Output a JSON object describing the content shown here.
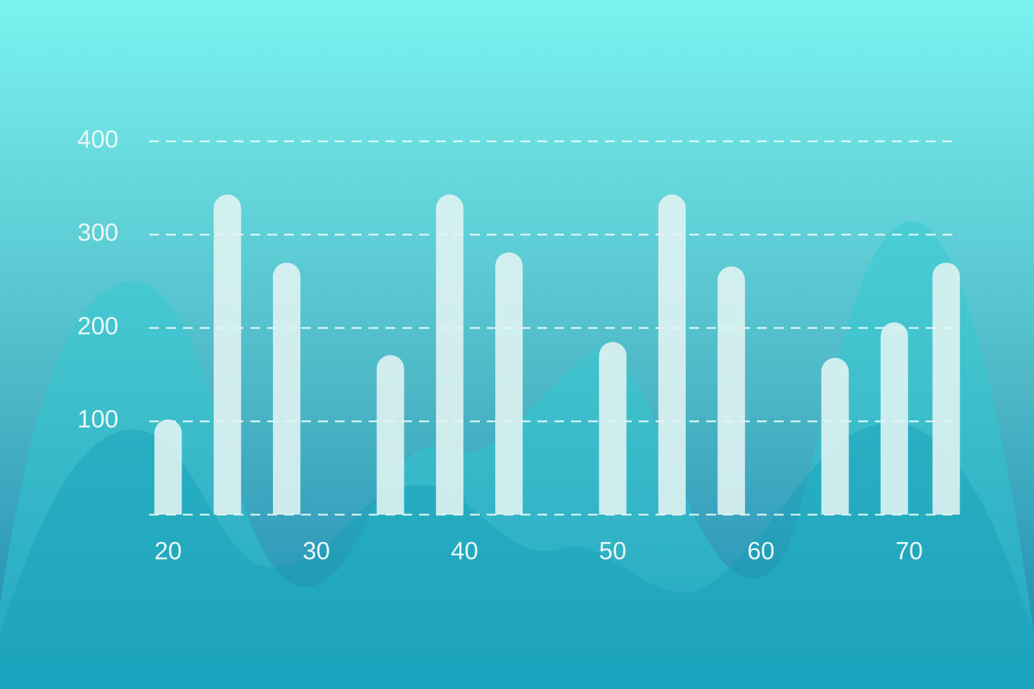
{
  "colors": {
    "bg_top": "#7af3f0",
    "bg_bottom": "#1a88b2",
    "bar": "#e3f4f2",
    "grid": "#f2fbfb",
    "tick_text": "#eaf7f7",
    "wave_back": "#2fc9d2",
    "wave_front": "#159fb8"
  },
  "chart_data": {
    "type": "bar",
    "x": [
      20,
      24,
      28,
      35,
      39,
      43,
      50,
      54,
      58,
      65,
      69,
      72.5
    ],
    "values": [
      102,
      343,
      270,
      171,
      343,
      281,
      185,
      343,
      266,
      168,
      206,
      270
    ],
    "ylim": [
      0,
      400
    ],
    "xlim": [
      19,
      73
    ],
    "xticks": [
      "20",
      "30",
      "40",
      "50",
      "60",
      "70"
    ],
    "yticks": [
      "100",
      "200",
      "300",
      "400"
    ],
    "grid": true,
    "grid_style": "dashed"
  }
}
